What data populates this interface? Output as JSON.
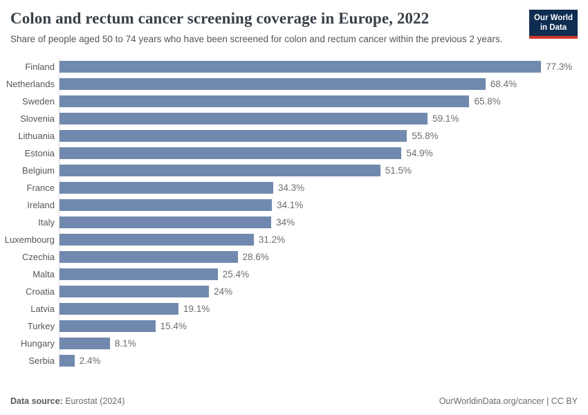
{
  "header": {
    "title": "Colon and rectum cancer screening coverage in Europe, 2022",
    "subtitle": "Share of people aged 50 to 74 years who have been screened for colon and rectum cancer within the previous 2 years."
  },
  "logo": {
    "line1": "Our World",
    "line2": "in Data",
    "bg_color": "#0e2d51",
    "accent_color": "#d0342c"
  },
  "chart_data": {
    "type": "bar",
    "orientation": "horizontal",
    "title": "Colon and rectum cancer screening coverage in Europe, 2022",
    "categories": [
      "Finland",
      "Netherlands",
      "Sweden",
      "Slovenia",
      "Lithuania",
      "Estonia",
      "Belgium",
      "France",
      "Ireland",
      "Italy",
      "Luxembourg",
      "Czechia",
      "Malta",
      "Croatia",
      "Latvia",
      "Turkey",
      "Hungary",
      "Serbia"
    ],
    "values": [
      77.3,
      68.4,
      65.8,
      59.1,
      55.8,
      54.9,
      51.5,
      34.3,
      34.1,
      34,
      31.2,
      28.6,
      25.4,
      24,
      19.1,
      15.4,
      8.1,
      2.4
    ],
    "value_labels": [
      "77.3%",
      "68.4%",
      "65.8%",
      "59.1%",
      "55.8%",
      "54.9%",
      "51.5%",
      "34.3%",
      "34.1%",
      "34%",
      "31.2%",
      "28.6%",
      "25.4%",
      "24%",
      "19.1%",
      "15.4%",
      "8.1%",
      "2.4%"
    ],
    "xlabel": "",
    "ylabel": "",
    "xlim": [
      0,
      77.3
    ],
    "grid": false,
    "legend": false,
    "bar_color": "#7189ae",
    "axis_line_color": "#dcdcdc"
  },
  "footer": {
    "source_label": "Data source:",
    "source_value": " Eurostat (2024)",
    "attribution": "OurWorldinData.org/cancer | CC BY"
  }
}
